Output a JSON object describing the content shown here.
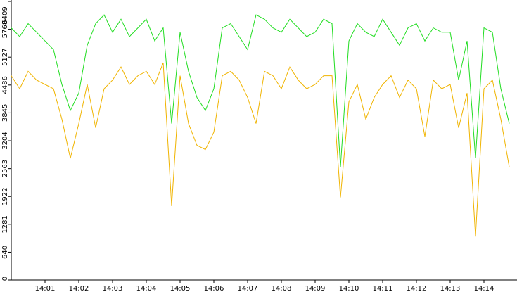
{
  "chart_data": {
    "type": "line",
    "categories": [
      null,
      null,
      null,
      null,
      "14:01",
      null,
      null,
      null,
      "14:02",
      null,
      null,
      null,
      "14:03",
      null,
      null,
      null,
      "14:04",
      null,
      null,
      null,
      "14:05",
      null,
      null,
      null,
      "14:06",
      null,
      null,
      null,
      "14:07",
      null,
      null,
      null,
      "14:08",
      null,
      null,
      null,
      "14:09",
      null,
      null,
      null,
      "14:10",
      null,
      null,
      null,
      "14:11",
      null,
      null,
      null,
      "14:12",
      null,
      null,
      null,
      "14:13",
      null,
      null,
      null,
      "14:14",
      null,
      null,
      null
    ],
    "series": [
      {
        "color": "#22dd22",
        "values": [
          5800,
          5600,
          5900,
          5700,
          5500,
          5300,
          4500,
          3900,
          4300,
          5400,
          5900,
          6100,
          5700,
          6000,
          5600,
          5800,
          6000,
          5500,
          5800,
          3600,
          5700,
          4800,
          4200,
          3900,
          4400,
          5800,
          5900,
          5600,
          5300,
          6100,
          6000,
          5800,
          5700,
          6000,
          5800,
          5600,
          5700,
          6000,
          5900,
          2600,
          5500,
          5900,
          5700,
          5600,
          6000,
          5700,
          5400,
          5800,
          5900,
          5500,
          5800,
          5700,
          5700,
          4600,
          5500,
          2800,
          5800,
          5700,
          4400,
          3600
        ]
      },
      {
        "color": "#f0b400",
        "values": [
          4700,
          4400,
          4800,
          4600,
          4500,
          4400,
          3700,
          2800,
          3600,
          4500,
          3500,
          4400,
          4600,
          4900,
          4500,
          4700,
          4800,
          4500,
          5000,
          1700,
          4700,
          3600,
          3100,
          3000,
          3400,
          4700,
          4800,
          4600,
          4200,
          3600,
          4800,
          4700,
          4400,
          4900,
          4600,
          4400,
          4500,
          4700,
          4700,
          1900,
          4100,
          4500,
          3700,
          4200,
          4500,
          4700,
          4200,
          4600,
          4400,
          3300,
          4600,
          4400,
          4500,
          3500,
          4300,
          1000,
          4400,
          4600,
          3700,
          2600
        ]
      }
    ],
    "ylim": [
      0,
      6409
    ],
    "yticks": [
      0,
      640,
      1281,
      1922,
      2563,
      3204,
      3845,
      4486,
      5127,
      5768,
      6409
    ]
  }
}
